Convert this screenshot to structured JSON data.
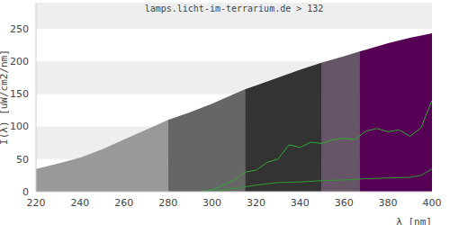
{
  "chart_data": {
    "type": "area",
    "title": "lamps.licht-im-terrarium.de > 132",
    "x_label": "λ [nm]",
    "y_label": "I(λ) [uW/cm2/nm]",
    "xlim": [
      220,
      400
    ],
    "xticks": [
      220,
      240,
      260,
      280,
      300,
      320,
      340,
      360,
      380,
      400
    ],
    "ylim": [
      0,
      290
    ],
    "yticks": [
      0,
      50,
      100,
      150,
      200,
      250
    ],
    "grid": true,
    "series": [
      {
        "type": "area",
        "color": "#999999",
        "x": [
          220,
          230,
          240,
          250,
          260,
          270,
          280
        ],
        "values": [
          35,
          43,
          52,
          65,
          80,
          95,
          110
        ]
      },
      {
        "type": "area",
        "color": "#666666",
        "x": [
          280,
          290,
          300,
          310,
          315
        ],
        "values": [
          110,
          122,
          135,
          150,
          157
        ]
      },
      {
        "type": "area",
        "color": "#333333",
        "x": [
          315,
          320,
          330,
          340,
          350
        ],
        "values": [
          157,
          163,
          175,
          187,
          198
        ]
      },
      {
        "type": "area",
        "color": "#665566",
        "x": [
          350,
          360,
          367
        ],
        "values": [
          198,
          208,
          215
        ]
      },
      {
        "type": "area",
        "color": "#550055",
        "x": [
          367,
          370,
          380,
          390,
          400
        ],
        "values": [
          215,
          218,
          228,
          236,
          243
        ]
      },
      {
        "type": "line",
        "color": "#33aa33",
        "x": [
          295,
          300,
          305,
          310,
          315,
          320,
          325,
          330,
          335,
          340,
          345,
          350,
          355,
          360,
          365,
          370,
          375,
          380,
          385,
          390,
          395,
          400
        ],
        "values": [
          0,
          3,
          10,
          18,
          30,
          33,
          45,
          50,
          72,
          68,
          76,
          74,
          80,
          82,
          80,
          93,
          97,
          92,
          95,
          85,
          98,
          140
        ]
      },
      {
        "type": "line",
        "color": "#339933",
        "x": [
          300,
          305,
          310,
          320,
          330,
          340,
          350,
          360,
          370,
          380,
          390,
          395,
          400
        ],
        "values": [
          0,
          3,
          5,
          10,
          14,
          15,
          17,
          18,
          20,
          21,
          22,
          25,
          35
        ]
      }
    ]
  }
}
